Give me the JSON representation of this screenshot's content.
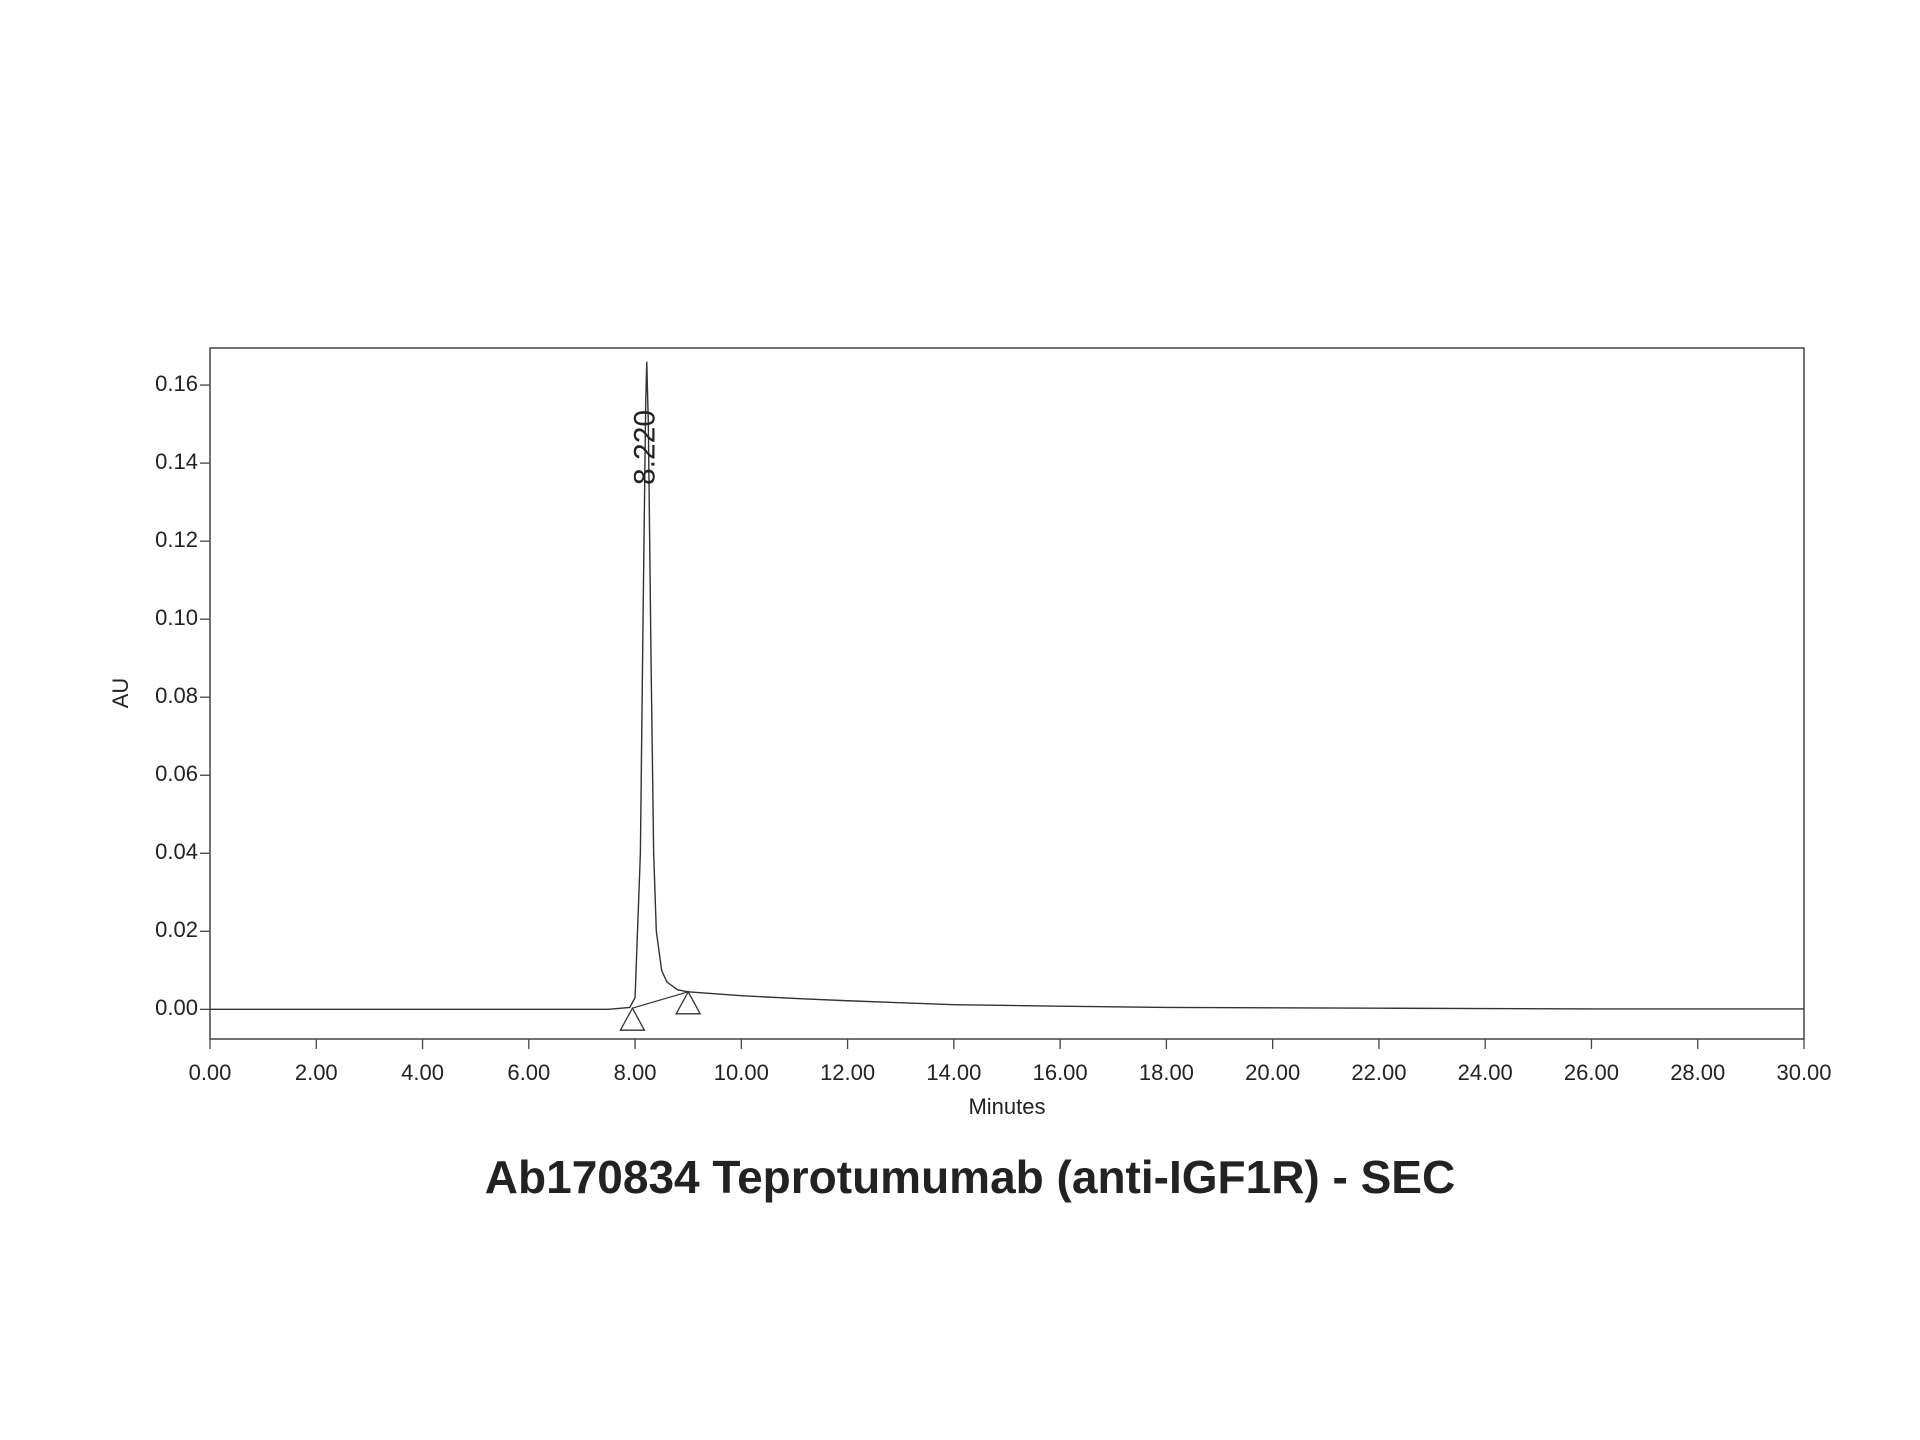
{
  "chart_data": {
    "type": "line",
    "title": "Ab170834 Teprotumumab (anti-IGF1R) - SEC",
    "xlabel": "Minutes",
    "ylabel": "AU",
    "color": "#333333",
    "x": [
      0,
      2,
      4,
      6,
      7.5,
      7.9,
      8.0,
      8.1,
      8.15,
      8.2,
      8.22,
      8.25,
      8.3,
      8.35,
      8.4,
      8.5,
      8.6,
      8.8,
      9.0,
      10,
      11,
      12,
      14,
      16,
      18,
      20,
      22,
      24,
      26,
      28,
      30
    ],
    "values": [
      0,
      0,
      0,
      0,
      0,
      0.0005,
      0.003,
      0.04,
      0.1,
      0.155,
      0.166,
      0.15,
      0.09,
      0.04,
      0.02,
      0.01,
      0.007,
      0.005,
      0.0045,
      0.0035,
      0.0028,
      0.0022,
      0.0012,
      0.0008,
      0.0005,
      0.0004,
      0.0003,
      0.0002,
      0.0001,
      0.0001,
      0.0001
    ],
    "integration_marks": [
      {
        "x": 7.95,
        "y": 0.0003
      },
      {
        "x": 9.0,
        "y": 0.0045
      }
    ],
    "annotations": [
      {
        "label": "8.220",
        "x": 8.22
      }
    ],
    "xlim": [
      0,
      30
    ],
    "ylim": [
      -0.0076,
      0.1695
    ],
    "xticks": [
      {
        "value": 0,
        "label": "0.00"
      },
      {
        "value": 2,
        "label": "2.00"
      },
      {
        "value": 4,
        "label": "4.00"
      },
      {
        "value": 6,
        "label": "6.00"
      },
      {
        "value": 8,
        "label": "8.00"
      },
      {
        "value": 10,
        "label": "10.00"
      },
      {
        "value": 12,
        "label": "12.00"
      },
      {
        "value": 14,
        "label": "14.00"
      },
      {
        "value": 16,
        "label": "16.00"
      },
      {
        "value": 18,
        "label": "18.00"
      },
      {
        "value": 20,
        "label": "20.00"
      },
      {
        "value": 22,
        "label": "22.00"
      },
      {
        "value": 24,
        "label": "24.00"
      },
      {
        "value": 26,
        "label": "26.00"
      },
      {
        "value": 28,
        "label": "28.00"
      },
      {
        "value": 30,
        "label": "30.00"
      }
    ],
    "yticks": [
      {
        "value": 0,
        "label": "0.00"
      },
      {
        "value": 0.02,
        "label": "0.02"
      },
      {
        "value": 0.04,
        "label": "0.04"
      },
      {
        "value": 0.06,
        "label": "0.06"
      },
      {
        "value": 0.08,
        "label": "0.08"
      },
      {
        "value": 0.1,
        "label": "0.10"
      },
      {
        "value": 0.12,
        "label": "0.12"
      },
      {
        "value": 0.14,
        "label": "0.14"
      },
      {
        "value": 0.16,
        "label": "0.16"
      }
    ],
    "grid": false
  }
}
